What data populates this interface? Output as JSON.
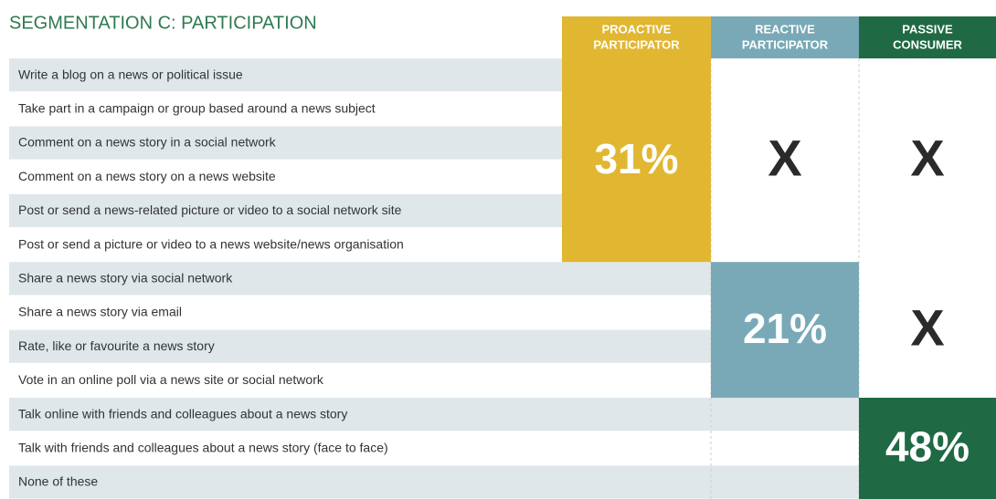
{
  "title": "SEGMENTATION C: PARTICIPATION",
  "columns": [
    {
      "header_lines": [
        "PROACTIVE",
        "PARTICIPATOR"
      ],
      "color": "#e1b732"
    },
    {
      "header_lines": [
        "REACTIVE",
        "PARTICIPATOR"
      ],
      "color": "#79a9b7"
    },
    {
      "header_lines": [
        "PASSIVE",
        "CONSUMER"
      ],
      "color": "#1f6a44"
    }
  ],
  "groups": [
    {
      "activities": [
        "Write a blog on a news or political issue",
        "Take part in a campaign or group based around a news subject",
        "Comment on a news story in a social network",
        "Comment on a news story on a news website",
        "Post or send a news-related picture or video to a social network site",
        "Post or send a picture or video to a news website/news organisation"
      ],
      "cells": [
        "31%",
        "X",
        "X"
      ]
    },
    {
      "activities": [
        "Share a news story via social network",
        "Share a news story via email",
        "Rate, like or favourite a news story",
        "Vote in an online poll via a news site or social network"
      ],
      "cells": [
        null,
        "21%",
        "X"
      ]
    },
    {
      "activities": [
        "Talk online with friends and colleagues about a news story",
        "Talk with friends and colleagues about a news story (face to face)",
        "None of these"
      ],
      "cells": [
        null,
        null,
        "48%"
      ]
    }
  ],
  "stripe_color": "#dfe7eb"
}
